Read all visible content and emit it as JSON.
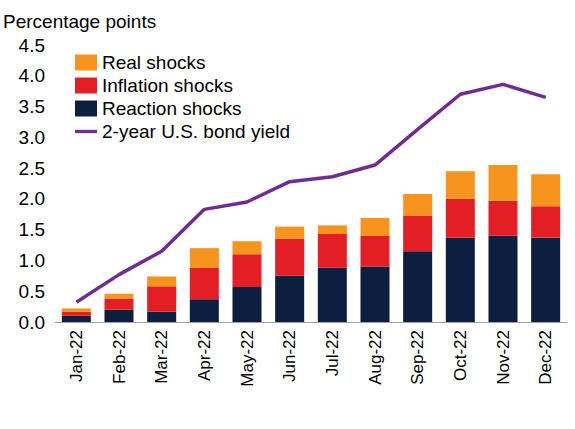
{
  "chart_data": {
    "type": "bar",
    "stacked": true,
    "y_label": "Percentage points",
    "categories": [
      "Jan-22",
      "Feb-22",
      "Mar-22",
      "Apr-22",
      "May-22",
      "Jun-22",
      "Jul-22",
      "Aug-22",
      "Sep-22",
      "Oct-22",
      "Nov-22",
      "Dec-22"
    ],
    "series": [
      {
        "name": "Reaction shocks",
        "type": "bar",
        "color": "#0d1f3f",
        "values": [
          0.1,
          0.2,
          0.17,
          0.37,
          0.57,
          0.75,
          0.88,
          0.9,
          1.15,
          1.37,
          1.4,
          1.37
        ]
      },
      {
        "name": "Inflation shocks",
        "type": "bar",
        "color": "#e31e24",
        "values": [
          0.07,
          0.18,
          0.41,
          0.51,
          0.53,
          0.6,
          0.55,
          0.5,
          0.58,
          0.63,
          0.57,
          0.51
        ]
      },
      {
        "name": "Real shocks",
        "type": "bar",
        "color": "#f7941d",
        "values": [
          0.05,
          0.08,
          0.16,
          0.32,
          0.21,
          0.2,
          0.14,
          0.29,
          0.35,
          0.45,
          0.58,
          0.52
        ]
      },
      {
        "name": "2-year U.S. bond yield",
        "type": "line",
        "color": "#6f2c91",
        "line_style": "solid",
        "marker": "none",
        "values": [
          0.32,
          0.77,
          1.15,
          1.83,
          1.95,
          2.28,
          2.36,
          2.55,
          3.13,
          3.7,
          3.86,
          3.65
        ]
      }
    ],
    "ylim": [
      0,
      4.5
    ],
    "yticks": [
      {
        "value": 0,
        "label": "0.0"
      },
      {
        "value": 0.5,
        "label": "0.5"
      },
      {
        "value": 1,
        "label": "1.0"
      },
      {
        "value": 1.5,
        "label": "1.5"
      },
      {
        "value": 2,
        "label": "2.0"
      },
      {
        "value": 2.5,
        "label": "2.5"
      },
      {
        "value": 3,
        "label": "3.0"
      },
      {
        "value": 3.5,
        "label": "3.5"
      },
      {
        "value": 4,
        "label": "4.0"
      },
      {
        "value": 4.5,
        "label": "4.5"
      }
    ],
    "grid": false,
    "legend": "top-left"
  }
}
